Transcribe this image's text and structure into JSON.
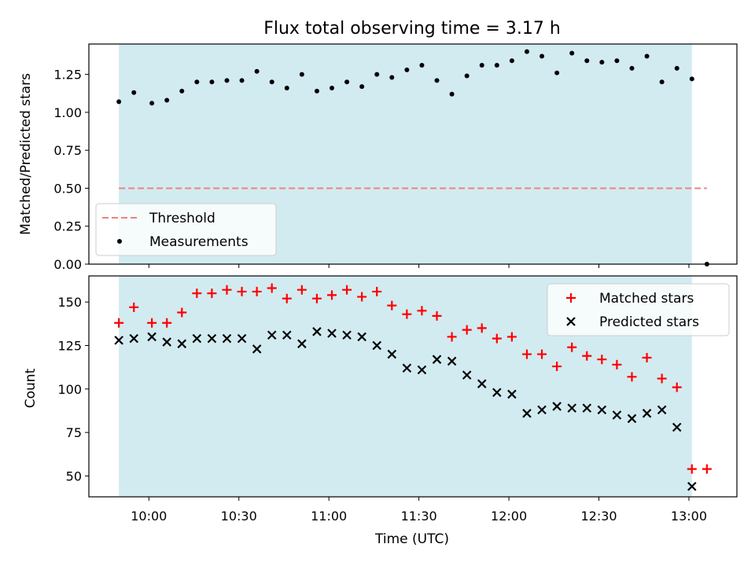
{
  "title": "Flux total observing time = 3.17 h",
  "colors": {
    "shade": "#a6d7e3",
    "threshold": "#f08080",
    "matched": "#ff0000",
    "predicted": "#000000",
    "points": "#000000"
  },
  "chart_data": [
    {
      "type": "scatter",
      "ylabel": "Matched/Predicted stars",
      "ylim": [
        0,
        1.45
      ],
      "yticks": [
        "0.00",
        "0.25",
        "0.50",
        "0.75",
        "1.00",
        "1.25"
      ],
      "xlim": [
        "09:40",
        "13:16"
      ],
      "observing_window": [
        "09:50",
        "13:01"
      ],
      "threshold": {
        "name": "Threshold",
        "value": 0.5,
        "x": [
          "09:50",
          "13:06"
        ]
      },
      "legend": {
        "position": "lower-left",
        "entries": [
          "Threshold",
          "Measurements"
        ]
      },
      "series": [
        {
          "name": "Measurements",
          "x": [
            "09:50",
            "09:55",
            "10:01",
            "10:06",
            "10:11",
            "10:16",
            "10:21",
            "10:26",
            "10:31",
            "10:36",
            "10:41",
            "10:46",
            "10:51",
            "10:56",
            "11:01",
            "11:06",
            "11:11",
            "11:16",
            "11:21",
            "11:26",
            "11:31",
            "11:36",
            "11:41",
            "11:46",
            "11:51",
            "11:56",
            "12:01",
            "12:06",
            "12:11",
            "12:16",
            "12:21",
            "12:26",
            "12:31",
            "12:36",
            "12:41",
            "12:46",
            "12:51",
            "12:56",
            "13:01",
            "13:06"
          ],
          "y": [
            1.07,
            1.13,
            1.06,
            1.08,
            1.14,
            1.2,
            1.2,
            1.21,
            1.21,
            1.27,
            1.2,
            1.16,
            1.25,
            1.14,
            1.16,
            1.2,
            1.17,
            1.25,
            1.23,
            1.28,
            1.31,
            1.21,
            1.12,
            1.24,
            1.31,
            1.31,
            1.34,
            1.4,
            1.37,
            1.26,
            1.39,
            1.34,
            1.33,
            1.34,
            1.29,
            1.37,
            1.2,
            1.29,
            1.22,
            0.0
          ]
        }
      ]
    },
    {
      "type": "scatter",
      "xlabel": "Time (UTC)",
      "ylabel": "Count",
      "ylim": [
        38,
        165
      ],
      "yticks": [
        "50",
        "75",
        "100",
        "125",
        "150"
      ],
      "xticks": [
        "10:00",
        "10:30",
        "11:00",
        "11:30",
        "12:00",
        "12:30",
        "13:00"
      ],
      "xlim": [
        "09:40",
        "13:16"
      ],
      "observing_window": [
        "09:50",
        "13:01"
      ],
      "legend": {
        "position": "top-right",
        "entries": [
          "Matched stars",
          "Predicted stars"
        ]
      },
      "series": [
        {
          "name": "Matched stars",
          "marker": "plus",
          "x": [
            "09:50",
            "09:55",
            "10:01",
            "10:06",
            "10:11",
            "10:16",
            "10:21",
            "10:26",
            "10:31",
            "10:36",
            "10:41",
            "10:46",
            "10:51",
            "10:56",
            "11:01",
            "11:06",
            "11:11",
            "11:16",
            "11:21",
            "11:26",
            "11:31",
            "11:36",
            "11:41",
            "11:46",
            "11:51",
            "11:56",
            "12:01",
            "12:06",
            "12:11",
            "12:16",
            "12:21",
            "12:26",
            "12:31",
            "12:36",
            "12:41",
            "12:46",
            "12:51",
            "12:56",
            "13:01",
            "13:06"
          ],
          "y": [
            138,
            147,
            138,
            138,
            144,
            155,
            155,
            157,
            156,
            156,
            158,
            152,
            157,
            152,
            154,
            157,
            153,
            156,
            148,
            143,
            145,
            142,
            130,
            134,
            135,
            129,
            130,
            120,
            120,
            113,
            124,
            119,
            117,
            114,
            107,
            118,
            106,
            101,
            54,
            54
          ]
        },
        {
          "name": "Predicted stars",
          "marker": "x",
          "x": [
            "09:50",
            "09:55",
            "10:01",
            "10:06",
            "10:11",
            "10:16",
            "10:21",
            "10:26",
            "10:31",
            "10:36",
            "10:41",
            "10:46",
            "10:51",
            "10:56",
            "11:01",
            "11:06",
            "11:11",
            "11:16",
            "11:21",
            "11:26",
            "11:31",
            "11:36",
            "11:41",
            "11:46",
            "11:51",
            "11:56",
            "12:01",
            "12:06",
            "12:11",
            "12:16",
            "12:21",
            "12:26",
            "12:31",
            "12:36",
            "12:41",
            "12:46",
            "12:51",
            "12:56",
            "13:01"
          ],
          "y": [
            128,
            129,
            130,
            127,
            126,
            129,
            129,
            129,
            129,
            123,
            131,
            131,
            126,
            133,
            132,
            131,
            130,
            125,
            120,
            112,
            111,
            117,
            116,
            108,
            103,
            98,
            97,
            86,
            88,
            90,
            89,
            89,
            88,
            85,
            83,
            86,
            88,
            78,
            44
          ]
        }
      ]
    }
  ]
}
